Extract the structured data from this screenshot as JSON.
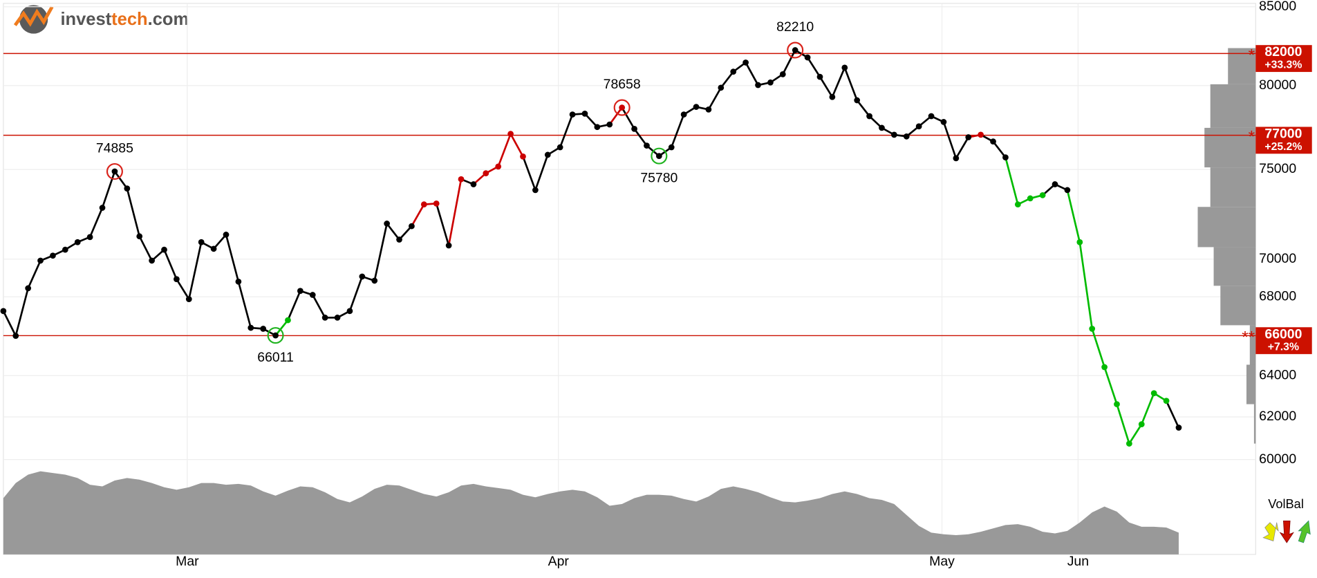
{
  "logo": {
    "parts": [
      "invest",
      "tech",
      ".com"
    ]
  },
  "chart_data": {
    "type": "line",
    "y_scale": "log",
    "ylim": [
      60000,
      85000
    ],
    "yticks": [
      60000,
      62000,
      64000,
      66000,
      68000,
      70000,
      75000,
      80000,
      85000
    ],
    "grid": true,
    "categories": [
      null,
      null,
      null,
      null,
      null,
      null,
      null,
      null,
      null,
      null,
      null,
      null,
      null,
      null,
      null,
      "Mar",
      null,
      null,
      null,
      null,
      null,
      null,
      null,
      null,
      null,
      null,
      null,
      null,
      null,
      null,
      null,
      null,
      null,
      null,
      null,
      null,
      null,
      null,
      null,
      null,
      null,
      null,
      null,
      null,
      null,
      "Apr",
      null,
      null,
      null,
      null,
      null,
      null,
      null,
      null,
      null,
      null,
      null,
      null,
      null,
      null,
      null,
      null,
      null,
      null,
      null,
      null,
      null,
      null,
      null,
      null,
      null,
      null,
      null,
      null,
      null,
      null,
      "May",
      null,
      null,
      null,
      null,
      null,
      null,
      null,
      null,
      null,
      null,
      "Jun",
      null,
      null,
      null,
      null,
      null,
      null,
      null,
      null
    ],
    "series": [
      {
        "values": [
          67260,
          65990,
          68450,
          69920,
          70190,
          70510,
          70920,
          71200,
          72820,
          74885,
          73910,
          71240,
          69920,
          70510,
          68930,
          67880,
          70920,
          70560,
          71330,
          68800,
          66400,
          66350,
          66011,
          66790,
          68310,
          68100,
          66920,
          66920,
          67260,
          69070,
          68850,
          71940,
          71060,
          71800,
          73010,
          73060,
          70740,
          74440,
          74150,
          74780,
          75170,
          77080,
          75750,
          73820,
          75850,
          76290,
          78240,
          78290,
          77490,
          77640,
          78658,
          77380,
          76390,
          75780,
          76290,
          78240,
          78700,
          78540,
          79870,
          80860,
          81430,
          80030,
          80190,
          80700,
          82210,
          81750,
          80540,
          79300,
          81110,
          79100,
          78140,
          77440,
          77030,
          76930,
          77530,
          78140,
          77790,
          75650,
          76880,
          77030,
          76630,
          75700,
          73010,
          73350,
          73530,
          74150,
          73820,
          70920,
          66350,
          64420,
          62610,
          60740,
          61650,
          63140,
          62770,
          61490
        ],
        "colors": [
          "#000000",
          "#000000",
          "#000000",
          "#000000",
          "#000000",
          "#000000",
          "#000000",
          "#000000",
          "#000000",
          "#000000",
          "#000000",
          "#000000",
          "#000000",
          "#000000",
          "#000000",
          "#000000",
          "#000000",
          "#000000",
          "#000000",
          "#000000",
          "#000000",
          "#000000",
          "#000000",
          "#00bb00",
          "#000000",
          "#000000",
          "#000000",
          "#000000",
          "#000000",
          "#000000",
          "#000000",
          "#000000",
          "#000000",
          "#000000",
          "#cc0000",
          "#cc0000",
          "#000000",
          "#cc0000",
          "#000000",
          "#cc0000",
          "#cc0000",
          "#cc0000",
          "#cc0000",
          "#000000",
          "#000000",
          "#000000",
          "#000000",
          "#000000",
          "#000000",
          "#000000",
          "#cc0000",
          "#000000",
          "#000000",
          "#000000",
          "#000000",
          "#000000",
          "#000000",
          "#000000",
          "#000000",
          "#000000",
          "#000000",
          "#000000",
          "#000000",
          "#000000",
          "#000000",
          "#000000",
          "#000000",
          "#000000",
          "#000000",
          "#000000",
          "#000000",
          "#000000",
          "#000000",
          "#000000",
          "#000000",
          "#000000",
          "#000000",
          "#000000",
          "#000000",
          "#cc0000",
          "#000000",
          "#000000",
          "#00bb00",
          "#00bb00",
          "#00bb00",
          "#000000",
          "#000000",
          "#00bb00",
          "#00bb00",
          "#00bb00",
          "#00bb00",
          "#00bb00",
          "#00bb00",
          "#00bb00",
          "#00bb00",
          "#000000"
        ]
      }
    ],
    "annotations": [
      {
        "index": 9,
        "color": "#d9241c"
      },
      {
        "index": 22,
        "color": "#1fb31f"
      },
      {
        "index": 50,
        "color": "#d9241c"
      },
      {
        "index": 53,
        "color": "#1fb31f"
      },
      {
        "index": 64,
        "color": "#d9241c"
      }
    ],
    "levels": [
      {
        "value": 82000,
        "change": "+33.3%",
        "marker": "*",
        "color": "#cc1100"
      },
      {
        "value": 77000,
        "change": "+25.2%",
        "marker": "*",
        "color": "#cc1100"
      },
      {
        "value": 66000,
        "change": "+7.3%",
        "marker": "**",
        "color": "#cc1100"
      }
    ],
    "volume": {
      "color": "#999999",
      "ylim": [
        0,
        113
      ],
      "values": [
        67,
        85,
        95,
        99,
        97,
        95,
        91,
        83,
        81,
        88,
        91,
        89,
        85,
        80,
        77,
        80,
        85,
        85,
        83,
        84,
        82,
        75,
        70,
        76,
        81,
        80,
        74,
        66,
        62,
        69,
        78,
        83,
        82,
        77,
        72,
        69,
        74,
        82,
        84,
        81,
        79,
        77,
        71,
        68,
        72,
        75,
        77,
        75,
        68,
        58,
        60,
        67,
        71,
        71,
        70,
        66,
        63,
        69,
        78,
        81,
        78,
        74,
        68,
        63,
        62,
        64,
        67,
        72,
        75,
        72,
        67,
        65,
        60,
        47,
        34,
        26,
        24,
        23,
        24,
        27,
        31,
        35,
        36,
        33,
        27,
        25,
        28,
        38,
        50,
        57,
        51,
        38,
        33,
        33,
        32,
        26
      ]
    },
    "volume_profile": {
      "color": "#999999",
      "xlim": [
        0,
        100
      ],
      "bins": [
        82340,
        80080,
        77440,
        75120,
        72870,
        70650,
        68580,
        66530,
        64540,
        62610,
        60740
      ],
      "values": [
        33,
        54,
        61,
        54,
        69,
        50,
        42,
        7,
        11,
        2
      ]
    },
    "legend": {
      "title": "VolBal"
    }
  }
}
